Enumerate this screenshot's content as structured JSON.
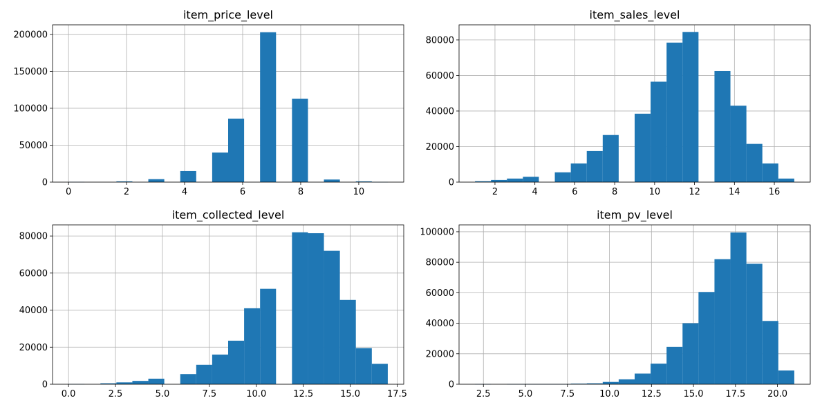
{
  "chart_data": [
    {
      "type": "bar",
      "title": "item_price_level",
      "xlabel": "",
      "ylabel": "",
      "xlim": [
        -0.55,
        11.55
      ],
      "ylim": [
        0,
        213000
      ],
      "xticks": [
        0,
        2,
        4,
        6,
        8,
        10
      ],
      "xtick_labels": [
        "0",
        "2",
        "4",
        "6",
        "8",
        "10"
      ],
      "yticks": [
        0,
        50000,
        100000,
        150000,
        200000
      ],
      "ytick_labels": [
        "0",
        "50000",
        "100000",
        "150000",
        "200000"
      ],
      "grid": true,
      "color": "#1f77b4",
      "bins": [
        {
          "x0": 0.0,
          "x1": 0.55,
          "value": 300
        },
        {
          "x0": 0.55,
          "x1": 1.1,
          "value": 0
        },
        {
          "x0": 1.1,
          "x1": 1.65,
          "value": 0
        },
        {
          "x0": 1.65,
          "x1": 2.2,
          "value": 1000
        },
        {
          "x0": 2.2,
          "x1": 2.75,
          "value": 0
        },
        {
          "x0": 2.75,
          "x1": 3.3,
          "value": 4000
        },
        {
          "x0": 3.3,
          "x1": 3.85,
          "value": 0
        },
        {
          "x0": 3.85,
          "x1": 4.4,
          "value": 15000
        },
        {
          "x0": 4.4,
          "x1": 4.95,
          "value": 0
        },
        {
          "x0": 4.95,
          "x1": 5.5,
          "value": 40000
        },
        {
          "x0": 5.5,
          "x1": 6.05,
          "value": 86000
        },
        {
          "x0": 6.05,
          "x1": 6.6,
          "value": 0
        },
        {
          "x0": 6.6,
          "x1": 7.15,
          "value": 203000
        },
        {
          "x0": 7.15,
          "x1": 7.7,
          "value": 0
        },
        {
          "x0": 7.7,
          "x1": 8.25,
          "value": 113000
        },
        {
          "x0": 8.25,
          "x1": 8.8,
          "value": 0
        },
        {
          "x0": 8.8,
          "x1": 9.35,
          "value": 3500
        },
        {
          "x0": 9.35,
          "x1": 9.9,
          "value": 0
        },
        {
          "x0": 9.9,
          "x1": 10.45,
          "value": 1000
        },
        {
          "x0": 10.45,
          "x1": 11.0,
          "value": 200
        }
      ]
    },
    {
      "type": "bar",
      "title": "item_sales_level",
      "xlabel": "",
      "ylabel": "",
      "xlim": [
        0.2,
        17.8
      ],
      "ylim": [
        0,
        88500
      ],
      "xticks": [
        2,
        4,
        6,
        8,
        10,
        12,
        14,
        16
      ],
      "xtick_labels": [
        "2",
        "4",
        "6",
        "8",
        "10",
        "12",
        "14",
        "16"
      ],
      "yticks": [
        0,
        20000,
        40000,
        60000,
        80000
      ],
      "ytick_labels": [
        "0",
        "20000",
        "40000",
        "60000",
        "80000"
      ],
      "grid": true,
      "color": "#1f77b4",
      "bins": [
        {
          "x0": 1.0,
          "x1": 1.8,
          "value": 500
        },
        {
          "x0": 1.8,
          "x1": 2.6,
          "value": 1200
        },
        {
          "x0": 2.6,
          "x1": 3.4,
          "value": 2000
        },
        {
          "x0": 3.4,
          "x1": 4.2,
          "value": 3000
        },
        {
          "x0": 4.2,
          "x1": 5.0,
          "value": 0
        },
        {
          "x0": 5.0,
          "x1": 5.8,
          "value": 5500
        },
        {
          "x0": 5.8,
          "x1": 6.6,
          "value": 10500
        },
        {
          "x0": 6.6,
          "x1": 7.4,
          "value": 17500
        },
        {
          "x0": 7.4,
          "x1": 8.2,
          "value": 26500
        },
        {
          "x0": 8.2,
          "x1": 9.0,
          "value": 0
        },
        {
          "x0": 9.0,
          "x1": 9.8,
          "value": 38500
        },
        {
          "x0": 9.8,
          "x1": 10.6,
          "value": 56500
        },
        {
          "x0": 10.6,
          "x1": 11.4,
          "value": 78500
        },
        {
          "x0": 11.4,
          "x1": 12.2,
          "value": 84500
        },
        {
          "x0": 12.2,
          "x1": 13.0,
          "value": 0
        },
        {
          "x0": 13.0,
          "x1": 13.8,
          "value": 62500
        },
        {
          "x0": 13.8,
          "x1": 14.6,
          "value": 43000
        },
        {
          "x0": 14.6,
          "x1": 15.4,
          "value": 21500
        },
        {
          "x0": 15.4,
          "x1": 16.2,
          "value": 10500
        },
        {
          "x0": 16.2,
          "x1": 17.0,
          "value": 2000
        }
      ]
    },
    {
      "type": "bar",
      "title": "item_collected_level",
      "xlabel": "",
      "ylabel": "",
      "xlim": [
        -0.85,
        17.85
      ],
      "ylim": [
        0,
        86000
      ],
      "xticks": [
        0,
        2.5,
        5,
        7.5,
        10,
        12.5,
        15,
        17.5
      ],
      "xtick_labels": [
        "0.0",
        "2.5",
        "5.0",
        "7.5",
        "10.0",
        "12.5",
        "15.0",
        "17.5"
      ],
      "yticks": [
        0,
        20000,
        40000,
        60000,
        80000
      ],
      "ytick_labels": [
        "0",
        "20000",
        "40000",
        "60000",
        "80000"
      ],
      "grid": true,
      "color": "#1f77b4",
      "bins": [
        {
          "x0": 0.0,
          "x1": 0.85,
          "value": 100
        },
        {
          "x0": 0.85,
          "x1": 1.7,
          "value": 0
        },
        {
          "x0": 1.7,
          "x1": 2.55,
          "value": 500
        },
        {
          "x0": 2.55,
          "x1": 3.4,
          "value": 1000
        },
        {
          "x0": 3.4,
          "x1": 4.25,
          "value": 1800
        },
        {
          "x0": 4.25,
          "x1": 5.1,
          "value": 3000
        },
        {
          "x0": 5.1,
          "x1": 5.95,
          "value": 0
        },
        {
          "x0": 5.95,
          "x1": 6.8,
          "value": 5500
        },
        {
          "x0": 6.8,
          "x1": 7.65,
          "value": 10500
        },
        {
          "x0": 7.65,
          "x1": 8.5,
          "value": 16000
        },
        {
          "x0": 8.5,
          "x1": 9.35,
          "value": 23500
        },
        {
          "x0": 9.35,
          "x1": 10.2,
          "value": 41000
        },
        {
          "x0": 10.2,
          "x1": 11.05,
          "value": 51500
        },
        {
          "x0": 11.05,
          "x1": 11.9,
          "value": 0
        },
        {
          "x0": 11.9,
          "x1": 12.75,
          "value": 82000
        },
        {
          "x0": 12.75,
          "x1": 13.6,
          "value": 81500
        },
        {
          "x0": 13.6,
          "x1": 14.45,
          "value": 72000
        },
        {
          "x0": 14.45,
          "x1": 15.3,
          "value": 45500
        },
        {
          "x0": 15.3,
          "x1": 16.15,
          "value": 19500
        },
        {
          "x0": 16.15,
          "x1": 17.0,
          "value": 11000
        }
      ]
    },
    {
      "type": "bar",
      "title": "item_pv_level",
      "xlabel": "",
      "ylabel": "",
      "xlim": [
        1.05,
        21.95
      ],
      "ylim": [
        0,
        104500
      ],
      "xticks": [
        2.5,
        5,
        7.5,
        10,
        12.5,
        15,
        17.5,
        20
      ],
      "xtick_labels": [
        "2.5",
        "5.0",
        "7.5",
        "10.0",
        "12.5",
        "15.0",
        "17.5",
        "20.0"
      ],
      "yticks": [
        0,
        20000,
        40000,
        60000,
        80000,
        100000
      ],
      "ytick_labels": [
        "0",
        "20000",
        "40000",
        "60000",
        "80000",
        "100000"
      ],
      "grid": true,
      "color": "#1f77b4",
      "bins": [
        {
          "x0": 2.0,
          "x1": 2.95,
          "value": 100
        },
        {
          "x0": 2.95,
          "x1": 3.9,
          "value": 0
        },
        {
          "x0": 3.9,
          "x1": 4.85,
          "value": 100
        },
        {
          "x0": 4.85,
          "x1": 5.8,
          "value": 100
        },
        {
          "x0": 5.8,
          "x1": 6.75,
          "value": 100
        },
        {
          "x0": 6.75,
          "x1": 7.7,
          "value": 100
        },
        {
          "x0": 7.7,
          "x1": 8.65,
          "value": 400
        },
        {
          "x0": 8.65,
          "x1": 9.6,
          "value": 600
        },
        {
          "x0": 9.6,
          "x1": 10.55,
          "value": 1500
        },
        {
          "x0": 10.55,
          "x1": 11.5,
          "value": 3200
        },
        {
          "x0": 11.5,
          "x1": 12.45,
          "value": 7000
        },
        {
          "x0": 12.45,
          "x1": 13.4,
          "value": 13500
        },
        {
          "x0": 13.4,
          "x1": 14.35,
          "value": 24500
        },
        {
          "x0": 14.35,
          "x1": 15.3,
          "value": 40000
        },
        {
          "x0": 15.3,
          "x1": 16.25,
          "value": 60500
        },
        {
          "x0": 16.25,
          "x1": 17.2,
          "value": 82000
        },
        {
          "x0": 17.2,
          "x1": 18.15,
          "value": 99500
        },
        {
          "x0": 18.15,
          "x1": 19.1,
          "value": 79000
        },
        {
          "x0": 19.1,
          "x1": 20.05,
          "value": 41500
        },
        {
          "x0": 20.05,
          "x1": 21.0,
          "value": 9000
        }
      ]
    }
  ]
}
